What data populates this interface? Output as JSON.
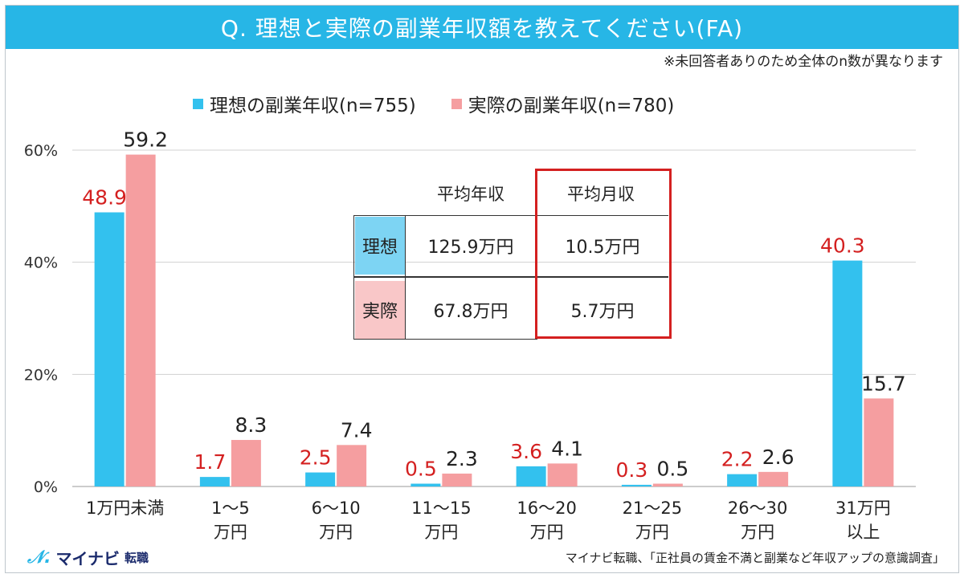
{
  "title": "Q. 理想と実際の副業年収額を教えてください(FA)",
  "note": "※未回答者ありのため全体のn数が異なります",
  "footer": {
    "logo_text": "マイナビ",
    "logo_sub": "転職",
    "source": "マイナビ転職、「正社員の賃金不満と副業など年収アップの意識調査」"
  },
  "colors": {
    "ideal": "#33c1ee",
    "actual": "#f59ea0",
    "title_bg": "#27b6e6",
    "ideal_label": "#d42020",
    "actual_label": "#222222",
    "highlight": "#d42020"
  },
  "chart_data": {
    "type": "bar",
    "categories": [
      "1万円未満",
      "1～5\n万円",
      "6～10\n万円",
      "11～15\n万円",
      "16～20\n万円",
      "21～25\n万円",
      "26～30\n万円",
      "31万円\n以上"
    ],
    "series": [
      {
        "name": "理想の副業年収(n=755)",
        "values": [
          48.9,
          1.7,
          2.5,
          0.5,
          3.6,
          0.3,
          2.2,
          40.3
        ]
      },
      {
        "name": "実際の副業年収(n=780)",
        "values": [
          59.2,
          8.3,
          7.4,
          2.3,
          4.1,
          0.5,
          2.6,
          15.7
        ]
      }
    ],
    "yticks": [
      "0%",
      "20%",
      "40%",
      "60%"
    ],
    "ylim": [
      0,
      60
    ],
    "grid": true,
    "legend": "top"
  },
  "inset": {
    "col_headers": [
      "平均年収",
      "平均月収"
    ],
    "rows": [
      {
        "label": "理想",
        "annual": "125.9万円",
        "monthly": "10.5万円"
      },
      {
        "label": "実際",
        "annual": "67.8万円",
        "monthly": "5.7万円"
      }
    ]
  }
}
